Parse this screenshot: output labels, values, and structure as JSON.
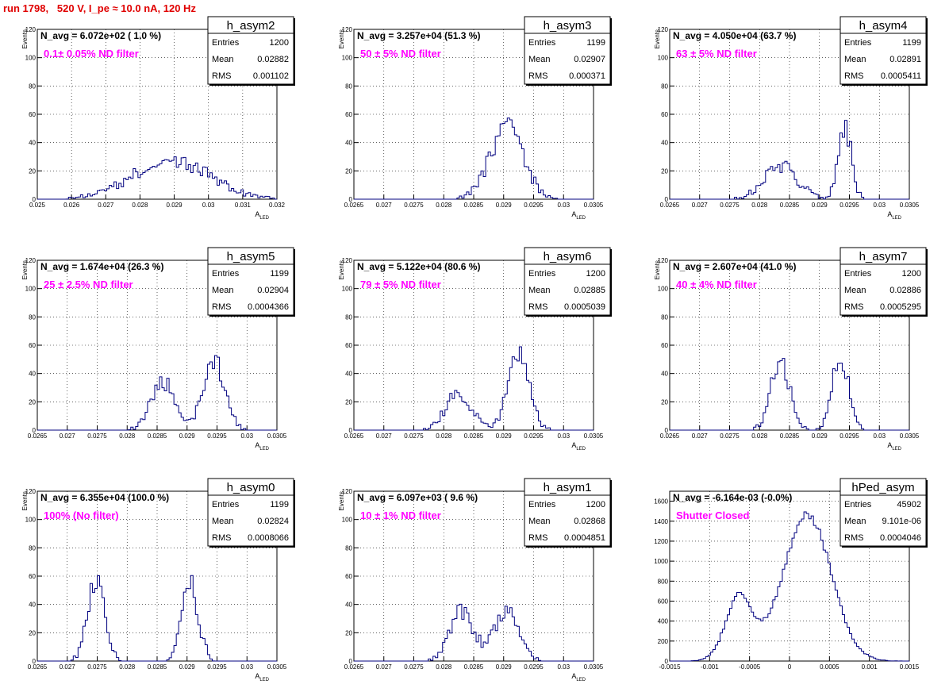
{
  "page": {
    "title": "run 1798,   520 V, I_pe ≈ 10.0 nA, 120 Hz"
  },
  "stats_labels": {
    "entries": "Entries",
    "mean": "Mean",
    "rms": "RMS"
  },
  "colors": {
    "line": "#00007f",
    "title": "#e00000",
    "annotation": "#ff00ff",
    "grid": "#000000"
  },
  "chart_data": [
    {
      "type": "histogram",
      "name": "h_asym2",
      "navg": "N_avg = 6.072e+02 ( 1.0 %)",
      "filter": "0.1± 0.05% ND filter",
      "entries": "1200",
      "mean": "0.02882",
      "rms": "0.001102",
      "xlabel": "A",
      "xlabel_sub": "LED",
      "ylabel": "Events",
      "xlim": [
        0.025,
        0.032
      ],
      "ylim": [
        0,
        120
      ],
      "xticks": [
        0.025,
        0.026,
        0.027,
        0.028,
        0.029,
        0.03,
        0.031,
        0.032
      ],
      "xticklabels": [
        "0.025",
        "0.026",
        "0.027",
        "0.028",
        "0.029",
        "0.03",
        "0.031",
        "0.032"
      ],
      "yticks": [
        0,
        20,
        40,
        60,
        80,
        100,
        120
      ],
      "yticklabels": [
        "0",
        "20",
        "40",
        "60",
        "80",
        "100",
        "120"
      ],
      "peaks": [
        {
          "c": 0.0289,
          "s": 0.0011,
          "a": 28
        }
      ],
      "nbins": 100,
      "seed": 1
    },
    {
      "type": "histogram",
      "name": "h_asym3",
      "navg": "N_avg = 3.257e+04 (51.3 %)",
      "filter": "50 ± 5% ND filter",
      "entries": "1199",
      "mean": "0.02907",
      "rms": "0.000371",
      "xlabel": "A",
      "xlabel_sub": "LED",
      "ylabel": "Events",
      "xlim": [
        0.0265,
        0.0305
      ],
      "ylim": [
        0,
        120
      ],
      "xticks": [
        0.0265,
        0.027,
        0.0275,
        0.028,
        0.0285,
        0.029,
        0.0295,
        0.03,
        0.0305
      ],
      "xticklabels": [
        "0.0265",
        "0.027",
        "0.0275",
        "0.028",
        "0.0285",
        "0.029",
        "0.0295",
        "0.03",
        "0.0305"
      ],
      "yticks": [
        0,
        20,
        40,
        60,
        80,
        100,
        120
      ],
      "yticklabels": [
        "0",
        "20",
        "40",
        "60",
        "80",
        "100",
        "120"
      ],
      "peaks": [
        {
          "c": 0.02905,
          "s": 0.00028,
          "a": 50
        }
      ],
      "nbins": 100,
      "seed": 2
    },
    {
      "type": "histogram",
      "name": "h_asym4",
      "navg": "N_avg = 4.050e+04 (63.7 %)",
      "filter": "63 ± 5% ND filter",
      "entries": "1199",
      "mean": "0.02891",
      "rms": "0.0005411",
      "xlabel": "A",
      "xlabel_sub": "LED",
      "ylabel": "Events",
      "xlim": [
        0.0265,
        0.0305
      ],
      "ylim": [
        0,
        120
      ],
      "xticks": [
        0.0265,
        0.027,
        0.0275,
        0.028,
        0.0285,
        0.029,
        0.0295,
        0.03,
        0.0305
      ],
      "xticklabels": [
        "0.0265",
        "0.027",
        "0.0275",
        "0.028",
        "0.0285",
        "0.029",
        "0.0295",
        "0.03",
        "0.0305"
      ],
      "yticks": [
        0,
        20,
        40,
        60,
        80,
        100,
        120
      ],
      "yticklabels": [
        "0",
        "20",
        "40",
        "60",
        "80",
        "100",
        "120"
      ],
      "peaks": [
        {
          "c": 0.02835,
          "s": 0.00028,
          "a": 24
        },
        {
          "c": 0.02942,
          "s": 0.00011,
          "a": 52
        }
      ],
      "nbins": 100,
      "seed": 3
    },
    {
      "type": "histogram",
      "name": "h_asym5",
      "navg": "N_avg = 1.674e+04 (26.3 %)",
      "filter": "25 ± 2.5% ND filter",
      "entries": "1199",
      "mean": "0.02904",
      "rms": "0.0004366",
      "xlabel": "A",
      "xlabel_sub": "LED",
      "ylabel": "Events",
      "xlim": [
        0.0265,
        0.0305
      ],
      "ylim": [
        0,
        120
      ],
      "xticks": [
        0.0265,
        0.027,
        0.0275,
        0.028,
        0.0285,
        0.029,
        0.0295,
        0.03,
        0.0305
      ],
      "xticklabels": [
        "0.0265",
        "0.027",
        "0.0275",
        "0.028",
        "0.0285",
        "0.029",
        "0.0295",
        "0.03",
        "0.0305"
      ],
      "yticks": [
        0,
        20,
        40,
        60,
        80,
        100,
        120
      ],
      "yticklabels": [
        "0",
        "20",
        "40",
        "60",
        "80",
        "100",
        "120"
      ],
      "peaks": [
        {
          "c": 0.0286,
          "s": 0.0002,
          "a": 34
        },
        {
          "c": 0.02945,
          "s": 0.00018,
          "a": 48
        }
      ],
      "nbins": 100,
      "seed": 4
    },
    {
      "type": "histogram",
      "name": "h_asym6",
      "navg": "N_avg = 5.122e+04 (80.6 %)",
      "filter": "79 ± 5% ND filter",
      "entries": "1200",
      "mean": "0.02885",
      "rms": "0.0005039",
      "xlabel": "A",
      "xlabel_sub": "LED",
      "ylabel": "Events",
      "xlim": [
        0.0265,
        0.0305
      ],
      "ylim": [
        0,
        120
      ],
      "xticks": [
        0.0265,
        0.027,
        0.0275,
        0.028,
        0.0285,
        0.029,
        0.0295,
        0.03,
        0.0305
      ],
      "xticklabels": [
        "0.0265",
        "0.027",
        "0.0275",
        "0.028",
        "0.0285",
        "0.029",
        "0.0295",
        "0.03",
        "0.0305"
      ],
      "yticks": [
        0,
        20,
        40,
        60,
        80,
        100,
        120
      ],
      "yticklabels": [
        "0",
        "20",
        "40",
        "60",
        "80",
        "100",
        "120"
      ],
      "peaks": [
        {
          "c": 0.02825,
          "s": 0.00022,
          "a": 25
        },
        {
          "c": 0.02925,
          "s": 0.00018,
          "a": 52
        }
      ],
      "nbins": 100,
      "seed": 5
    },
    {
      "type": "histogram",
      "name": "h_asym7",
      "navg": "N_avg = 2.607e+04 (41.0 %)",
      "filter": "40 ± 4% ND filter",
      "entries": "1200",
      "mean": "0.02886",
      "rms": "0.0005295",
      "xlabel": "A",
      "xlabel_sub": "LED",
      "ylabel": "Events",
      "xlim": [
        0.0265,
        0.0305
      ],
      "ylim": [
        0,
        120
      ],
      "xticks": [
        0.0265,
        0.027,
        0.0275,
        0.028,
        0.0285,
        0.029,
        0.0295,
        0.03,
        0.0305
      ],
      "xticklabels": [
        "0.0265",
        "0.027",
        "0.0275",
        "0.028",
        "0.0285",
        "0.029",
        "0.0295",
        "0.03",
        "0.0305"
      ],
      "yticks": [
        0,
        20,
        40,
        60,
        80,
        100,
        120
      ],
      "yticklabels": [
        "0",
        "20",
        "40",
        "60",
        "80",
        "100",
        "120"
      ],
      "peaks": [
        {
          "c": 0.02835,
          "s": 0.00016,
          "a": 48
        },
        {
          "c": 0.02935,
          "s": 0.00014,
          "a": 52
        }
      ],
      "nbins": 100,
      "seed": 6
    },
    {
      "type": "histogram",
      "name": "h_asym0",
      "navg": "N_avg = 6.355e+04 (100.0 %)",
      "filter": "100% (No filter)",
      "entries": "1199",
      "mean": "0.02824",
      "rms": "0.0008066",
      "xlabel": "A",
      "xlabel_sub": "LED",
      "ylabel": "Events",
      "xlim": [
        0.0265,
        0.0305
      ],
      "ylim": [
        0,
        120
      ],
      "xticks": [
        0.0265,
        0.027,
        0.0275,
        0.028,
        0.0285,
        0.029,
        0.0295,
        0.03,
        0.0305
      ],
      "xticklabels": [
        "0.0265",
        "0.027",
        "0.0275",
        "0.028",
        "0.0285",
        "0.029",
        "0.0295",
        "0.03",
        "0.0305"
      ],
      "yticks": [
        0,
        20,
        40,
        60,
        80,
        100,
        120
      ],
      "yticklabels": [
        "0",
        "20",
        "40",
        "60",
        "80",
        "100",
        "120"
      ],
      "peaks": [
        {
          "c": 0.02748,
          "s": 0.00014,
          "a": 58
        },
        {
          "c": 0.02905,
          "s": 0.00014,
          "a": 54
        }
      ],
      "nbins": 100,
      "seed": 7
    },
    {
      "type": "histogram",
      "name": "h_asym1",
      "navg": "N_avg = 6.097e+03 ( 9.6 %)",
      "filter": "10 ± 1% ND filter",
      "entries": "1200",
      "mean": "0.02868",
      "rms": "0.0004851",
      "xlabel": "A",
      "xlabel_sub": "LED",
      "ylabel": "Events",
      "xlim": [
        0.0265,
        0.0305
      ],
      "ylim": [
        0,
        120
      ],
      "xticks": [
        0.0265,
        0.027,
        0.0275,
        0.028,
        0.0285,
        0.029,
        0.0295,
        0.03,
        0.0305
      ],
      "xticklabels": [
        "0.0265",
        "0.027",
        "0.0275",
        "0.028",
        "0.0285",
        "0.029",
        "0.0295",
        "0.03",
        "0.0305"
      ],
      "yticks": [
        0,
        20,
        40,
        60,
        80,
        100,
        120
      ],
      "yticklabels": [
        "0",
        "20",
        "40",
        "60",
        "80",
        "100",
        "120"
      ],
      "peaks": [
        {
          "c": 0.0283,
          "s": 0.0002,
          "a": 36
        },
        {
          "c": 0.02905,
          "s": 0.0002,
          "a": 36
        }
      ],
      "nbins": 100,
      "seed": 8
    },
    {
      "type": "histogram",
      "name": "hPed_asym",
      "navg": "N_avg = -6.164e-03 (-0.0%)",
      "filter": "Shutter Closed",
      "entries": "45902",
      "mean": "9.101e-06",
      "rms": "0.0004046",
      "xlabel": "",
      "xlabel_sub": "",
      "ylabel": "",
      "xlim": [
        -0.0015,
        0.0015
      ],
      "ylim": [
        0,
        1700
      ],
      "xticks": [
        -0.0015,
        -0.001,
        -0.0005,
        0,
        0.0005,
        0.001,
        0.0015
      ],
      "xticklabels": [
        "-0.0015",
        "-0.001",
        "-0.0005",
        "0",
        "0.0005",
        "0.001",
        "0.0015"
      ],
      "yticks": [
        0,
        200,
        400,
        600,
        800,
        1000,
        1200,
        1400,
        1600
      ],
      "yticklabels": [
        "0",
        "200",
        "400",
        "600",
        "800",
        "1000",
        "1200",
        "1400",
        "1600"
      ],
      "peaks": [
        {
          "c": -0.00063,
          "s": 0.00017,
          "a": 640
        },
        {
          "c": 0.00022,
          "s": 0.0003,
          "a": 1470
        }
      ],
      "nbins": 100,
      "seed": 9
    }
  ]
}
